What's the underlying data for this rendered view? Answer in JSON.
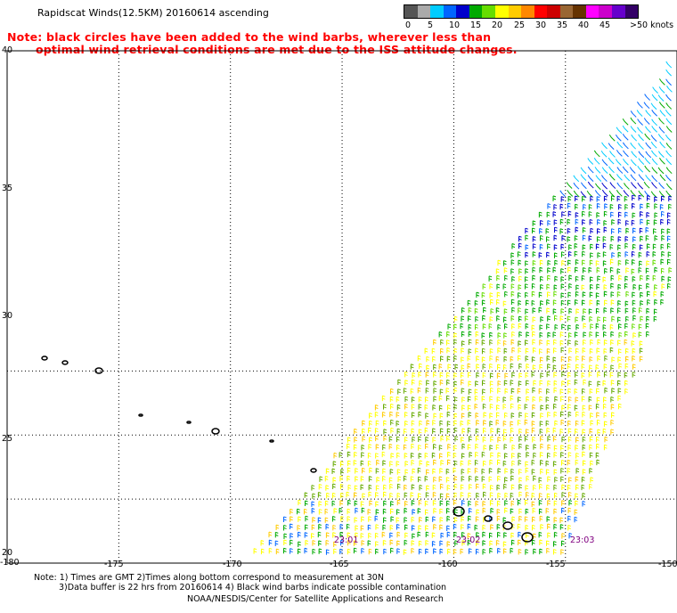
{
  "header": {
    "title": "Rapidscat Winds(12.5KM) 20160614 ascending",
    "note_line1": "Note: black circles have been added to the wind barbs, wherever less than",
    "note_line2": "optimal wind retrieval conditions are met due to the ISS attitude changes."
  },
  "legend": {
    "colors": [
      "#555555",
      "#aaaaaa",
      "#00ccff",
      "#0066ff",
      "#0000cc",
      "#00aa00",
      "#66dd00",
      "#ffff00",
      "#ffcc00",
      "#ff8800",
      "#ff0000",
      "#cc0000",
      "#996633",
      "#663300",
      "#ff00ff",
      "#cc00cc",
      "#6600cc",
      "#330066"
    ],
    "labels": [
      "0",
      "5",
      "10",
      "15",
      "20",
      "25",
      "30",
      "35",
      "40",
      "45",
      ">50 knots"
    ]
  },
  "axes": {
    "lat_labels": [
      "40",
      "35",
      "30",
      "25",
      "20"
    ],
    "lon_labels": [
      "-180",
      "-175",
      "-170",
      "-165",
      "-160",
      "-155",
      "-150"
    ]
  },
  "timestamps": [
    "23:01",
    "23:02",
    "23:03"
  ],
  "footer": {
    "line1": "Note: 1) Times are GMT 2)Times along bottom correspond to measurement at 30N",
    "line2": "3)Data buffer is 22 hrs from 20160614 4) Black wind barbs indicate possible contamination",
    "line3": "NOAA/NESDIS/Center for Satellite Applications and Research"
  }
}
